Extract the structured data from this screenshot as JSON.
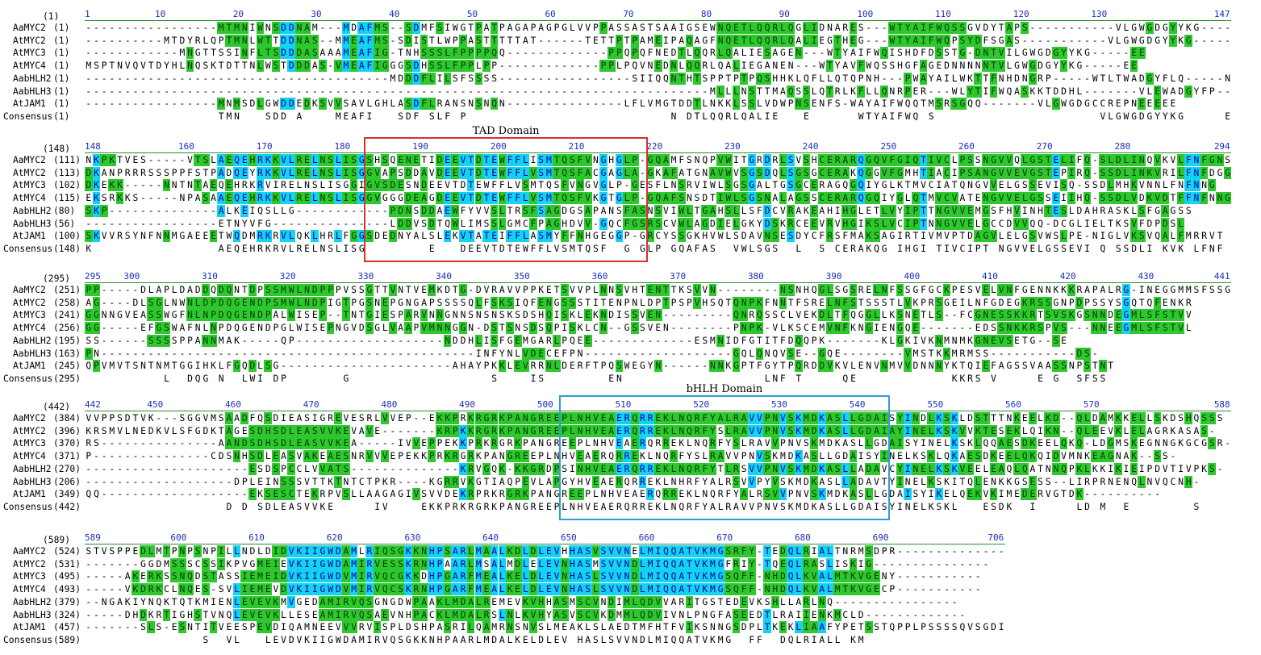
{
  "alignment": {
    "colors": {
      "identical": {
        "background": "#ffe600",
        "text": "#d40000"
      },
      "conserved": {
        "background": "#14d2f0",
        "text": "#0000a0"
      },
      "similar": {
        "background": "#2ec82e",
        "text": "#003a00"
      },
      "ruler_numbers": "#1a2fb8",
      "ruler_line": "#2e8b2e"
    },
    "blocks": [
      {
        "range_label": "(1)",
        "start_pos": 1,
        "end_pos": 147,
        "ruler_ticks": [
          "1",
          "10",
          "20",
          "30",
          "40",
          "50",
          "60",
          "70",
          "80",
          "90",
          "100",
          "110",
          "120",
          "130",
          "147"
        ],
        "rows": [
          {
            "name": "AaMYC2",
            "start": "(1)",
            "seq": "-----------------MTMNIWNSDDNAM---MDAFMS--SDMFSIWGTPATPAGAPAGPGLVVPPASSASTSAAIGSEWNQETLQQRLQGLIDNARES---WTYAIFWQSSGVDYTAPS-----------VLGWGDGYYKG-----EV"
          },
          {
            "name": "AtMYC2",
            "start": "(1)",
            "seq": "----------MTDYRLQPTMNLWTTDDNAS--MMEAFMS-SDISTLWPPASTTTTTAT------TETTPTPAMEIPAQAGFNQETLQQRLQALIEGTHEG---WTYAIFWQPSYDFSGAS-----------VLGWGDGYYKG-----EE"
          },
          {
            "name": "AtMYC3",
            "start": "(1)",
            "seq": "------------MNGTTSSINFLTSDDDASAAAMEAFIG-TNHSSSLFPPPPQQ-------------PPQPQFNEDTLQQRLQALIESAGEN---WTYAIFWQISHDFDSSTG-DNTVILGWGDGYYKG-----EE"
          },
          {
            "name": "AtMYC4",
            "start": "(1)",
            "seq": "MSPTNVQVTDYHLNQSKTDTTNLWSTDDDAS-VMEAFIGGGSDHSSLFPPLPP-------------PPLPQVNEDNLQQRLQALIEGANEN---WTYAVFWQSSHGFAGEDNNNNNTVLGWGDGYYKG-----EE"
          },
          {
            "name": "AabHLH2",
            "start": "(1)",
            "seq": "---------------------------------------MDDDFLILSFSSSS-----------------SIIQQNTHTSPPTPTPQSHHKLQFLLQTQPNH---PWAYAILWKTTFNHDNGRP-----WTLTWADGYFLQ-----NP"
          },
          {
            "name": "AabHLH3",
            "start": "(1)",
            "seq": "--------------------------------------------------------------------------------MLLLNSTTMAQSSLQTRLKFLLQNRPER---WLYTIFWQASKKTDDHL-------VLEWADGYFP-------"
          },
          {
            "name": "AtJAM1",
            "start": "(1)",
            "seq": "-----------------MNMSDLGWDDEDKSVVSAVLGHLASDFLRANSNSNQN---------------LFLVMGTDDTLNKKLSSLVDWPNSENFS-WAYAIFWQQTMSRSGQQ-------VLGWGDGCCREPNEEEEE"
          }
        ],
        "consensus": {
          "name": "Consensus",
          "start": "(1)",
          "seq": "                 TMN   SDD A    MEAFI   SDF SLF P                          N DTLQQRLQALIE   E      WTYAIFWQ S                     VLGWGDGYYKG     EE"
        }
      },
      {
        "range_label": "(148)",
        "start_pos": 148,
        "end_pos": 294,
        "ruler_ticks": [
          "148",
          "160",
          "170",
          "180",
          "190",
          "200",
          "210",
          "220",
          "230",
          "240",
          "250",
          "260",
          "270",
          "280",
          "294"
        ],
        "rows": [
          {
            "name": "AaMYC2",
            "start": "(111)",
            "seq": "NKPKTVES-----VTSLAEQEHRKKVLRELNSLISGSHSQENETIDEEVTDTEWFFLISMTQSFVNGHGLP-GQAMFSNQPVWITGRDRLSVSHCERARQGQVFGIQTIVCLPSSNGVVQLGSTELIFQ-SLDLINQVKVLFNFGNS"
          },
          {
            "name": "AtMYC2",
            "start": "(113)",
            "seq": "DKANPRRRSSSPPFSTPADQEYRKKVLRELNSLISGGVAPSDDAVDEEVTDTEWFFLVSMTQSFACGAGLA-GKAFATGNAVWVSGSDQLSGSGCERAKQGGVFGMHTIACIPSANGVVEVGSTEPIRQ-SSDLINKVRILFNFDGG"
          },
          {
            "name": "AtMYC3",
            "start": "(102)",
            "seq": "DKEKK-----NNTNTAEQEHRKRVIRELNSLISGGIGVSDESNDEEVTDTEWFFLVSMTQSFVNGVGLP-GESFLNSRVIWLSGSGALTGSGCERAGQGQIYGLKTMVCIATQNGVVELGSSEVISQ-SSDLMHKVNNLFNFNNG"
          },
          {
            "name": "AtMYC4",
            "start": "(115)",
            "seq": "EKSRKKS-----NPASAAEQEHRKKVLRELNSLISGGVGGGDEAGDEEVTDTEWFFLVSMTQSFVKGTGLP-GQAFSNSDTIWLSGSNALAGSSCERARQGQIYGLQTMVCVATENGVVELGSSEIIHQ-SSDLVDKVDTFFNFNNG"
          },
          {
            "name": "AabHLH2",
            "start": "(80)",
            "seq": "SKP--------------ALKEIQSLLG------------PDNSDDAEWFYVVSLTRSFSAGDGSAPANSFASNSVIWLTGAHSLLSFDCVRAKEAHIHGLETLVYIPTTNGVVEMGSFHVINHTESLDAHRASKLSFGAGSS"
          },
          {
            "name": "AabHLH3",
            "start": "(56)",
            "seq": "-----------------ETNYVFG---------------LDDVSDTQWLIMSSLGMCFPAGHDVV-GQCFGSRSCVWLAGDIELGKYDSKRCEEVRVHGIKSLVCIPTNNGVVELGCCDVVQQ-DCGLIELTKSVFDPDSL"
          },
          {
            "name": "AtJAM1",
            "start": "(100)",
            "seq": "SKVVRSYNFNNMGAEEETWQDMRKRVLQKLHRLFGGSDEDNYALSLEKVTATEIFFLASMYFFNHGEGGP-GRCYSSGKHVWLSDAVNSESDYCFRSFMAKSAGIRTIVMVPTDAGVLELGSVWSLPE-NIGLVKSVQALFMRRVT"
          }
        ],
        "consensus": {
          "name": "Consensus",
          "start": "(148)",
          "seq": "K                AEQEHRKRVLRELNSLISG        E   DEEVTDTEWFFLVSMTQSF  G GLP GQAFAS  VWLSGS  L  S CERAKQG IHGI TIVCIPT NGVVELGSSEVI Q SSDLI KVK LFNF"
        }
      },
      {
        "range_label": "(295)",
        "start_pos": 295,
        "end_pos": 441,
        "ruler_ticks": [
          "295",
          "300",
          "310",
          "320",
          "330",
          "340",
          "350",
          "360",
          "370",
          "380",
          "390",
          "400",
          "410",
          "420",
          "430",
          "441"
        ],
        "rows": [
          {
            "name": "AaMYC2",
            "start": "(251)",
            "seq": "PP-----DLAPLDADDQDQNTDPSSMWLNDPPPVSSGTTVNTVEMKDTG-DVRAVVPPKETSVVPLNNSVHTENTTKSVVN--------NSNHQGLSGSRELNFSSGFGCKPESVELVNFGENNKKKRAPALRG-INEGGMMSFSSGM"
          },
          {
            "name": "AtMYC2",
            "start": "(258)",
            "seq": "AG----DLSGLNWNLDPDQGENDPSMWLNDPIGTPGSNEPGNGAPSSSSQLFSKSIQFENGSSSTITENPNLDPTPSPVHSQTQNPKFNNTFSRELNFSTSSSTLVKPRSGEILNFGDEGKRSSGNPDPSSYSGQTQFENKR"
          },
          {
            "name": "AtMYC3",
            "start": "(241)",
            "seq": "GGNNGVEASSWGFNLNPDQGENDPALWISEP--TNTGIESPARVNNGNNSNSNSKSDSHQISKLEKNDISSVEN---------QNRQSSCLVEKDLTFQGGLLKSNETLS--FCGNESSKKRTSVSKGSNNDEGMLSFSTVV"
          },
          {
            "name": "AtMYC4",
            "start": "(256)",
            "seq": "GG-----EFGSWAFNLNPDQGENDPGLWISEPNGVDSGLVAAPVMNNGGN-DSTSNSDSQPISKLCN--GSSVEN--------PNPK-VLKSCEMVNFKNGIENGQE-------EDSSNKKRSPVS---NNEEGMLSFSTVL"
          },
          {
            "name": "AabHLH2",
            "start": "(195)",
            "seq": "SS------SSSSPPANNMAK-----QP-------------------NDDHLISFGEMGARLPQEE-------------ESMNIDFGTITFDQQPK-------KLGKIVKNMNMKGNEVSETG--SE"
          },
          {
            "name": "AabHLH3",
            "start": "(163)",
            "seq": "PN------------------------------------------------INFYNLVDECEFPN-------------------GQLQNQVSE--GQE--------VMSTKKMRMSS-----------DS-"
          },
          {
            "name": "AtJAM1",
            "start": "(245)",
            "seq": "QPVMVTSNTNMTGGIHKLFGQDLSG----------------------AHAYPKKLEVRRNLDERFTPQSWEGYN------NNKGPTFGYTPQRDDVKVLENVNMVVDNNNYKTQIEFAGSSVAASSNPSTNT"
          }
        ],
        "consensus": {
          "name": "Consensus",
          "start": "(295)",
          "seq": "          L  DQG N  LWI DP       G                  S    IS        EN                  LNF T     QE            KKRS V     E G  SFSS"
        }
      },
      {
        "range_label": "(442)",
        "start_pos": 442,
        "end_pos": 588,
        "ruler_ticks": [
          "442",
          "450",
          "460",
          "470",
          "480",
          "490",
          "500",
          "510",
          "520",
          "530",
          "540",
          "550",
          "560",
          "570",
          "588"
        ],
        "rows": [
          {
            "name": "AaMYC2",
            "start": "(384)",
            "seq": "VVPPSDTVK---SGGVMSAADFQSDIEASIGREVESRLVVEP--EKKPRKRGRKPANGREEPLNHVEAERQRREKLNQRFYALRAVVPNVSKMDKASLLGDAISYINDLKSKLDSTTTNKEELKD--QLDAMKKELLSKDSHQSSS"
          },
          {
            "name": "AtMYC2",
            "start": "(396)",
            "seq": "KRSMVLNEDKVLSFGDKTAGESDHSDLEASVVKEVAVE-------KRPKKRGRKPANGREEPLNHVEAERQRREKLNQRFYSLRAVVPNVSKMDKASLLGDAIAYINELKSKVVKTESEKLQIKN--QLEEVKLELAGRKASAS-"
          },
          {
            "name": "AtMYC3",
            "start": "(370)",
            "seq": "RS---------------AANDSDHSDLEASVVKEA-----IVVEPPEKKPRKRGRKPANGREEPLNHVEAERQRREKLNQRFYSLRAVVPNVSKMDKASLLGDAISYINELKSKLQQAESDKEELQKQ-LDGMSKEGNNGKGCGSR-"
          },
          {
            "name": "AtMYC4",
            "start": "(371)",
            "seq": "P---------------CDSNHSDLEASVAKEAESNRVVVEPEKKPRKRGRKPANGREEPLNHVEAERQRREKLNQRFYSLRAVVPNVSKMDKASLLGDAISYINELKSKLQKAESDKEELQKQIDVMNKEAGNAK--SS-"
          },
          {
            "name": "AabHLH2",
            "start": "(270)",
            "seq": "---------------------ESDSPCCLVVATS--------------KRVGQK-KKGRDPSINHVEAERQRREKLNQRFYTLRSVVPNVSKMDKASLLADAVCYINELKSKVEELEAQLQATNNQPKLKKIKIEIPDVTIVPKS-"
          },
          {
            "name": "AabHLH3",
            "start": "(206)",
            "seq": "-------------------DPLEINSSSVTTKTNTCTPKR----KGRRVKGTIAQPEVLAPGYHVEAERQRREKLNHRFYALRSVVPYVSKMDKASLLADAVTYINELKSKITQLENKKGSESS--LIRPRNENQLNVQCNH-"
          },
          {
            "name": "AtJAM1",
            "start": "(349)",
            "seq": "QQ-------------------EKSESCTEKRPVSLLAAGAGIVSVVDEKRPRKRGRKPANGREEPLNHVEAERQRREKLNQRFYALRSVVPNVSKMDKASLLGDAISYIKELQEKVKIMEDERVGTDK----------"
          }
        ],
        "consensus": {
          "name": "Consensus",
          "start": "(442)",
          "seq": "                  D D SDLEASVVKE     IV    EKKPRKRGRKPANGREEPLNHVEAERQRREKLNQRFYALRAVVPNVSKMDKASLLGDAISYINELKSKL   ESDK  I     LD M  E        S"
        }
      },
      {
        "range_label": "(589)",
        "start_pos": 589,
        "end_pos": 706,
        "ruler_ticks": [
          "589",
          "600",
          "610",
          "620",
          "630",
          "640",
          "650",
          "660",
          "670",
          "680",
          "690",
          "706"
        ],
        "rows": [
          {
            "name": "AaMYC2",
            "start": "(524)",
            "seq": "STVSPPEDLMTPNPSNPILLNDLDIDVKIIGWDAMLRIQSGKKNHPSARLMAALKDLDLEVHHASVSVVNELMIQQATVKMGSRFY-TEDQLRIALTNRMSDPR---------------"
          },
          {
            "name": "AtMYC2",
            "start": "(531)",
            "seq": "-------GGDMSSSCSSIKPVGMEIEVKIIGWDAMIRVESSKRNHPAARLMSALMDLELEVNHASMSVVNDLMIQQATVKMGFRIY-TQEQLRASLISKIG---------------"
          },
          {
            "name": "AtMYC3",
            "start": "(495)",
            "seq": "-----AKERKSSNQDSTASSIEMEIDVKIIGWDVMIRVQCGKKDHPGARFMEALKELDLEVNHASLSVVNDLMIQQATVKMGSQFF-NHDQLKVALMTKVGENY-----------"
          },
          {
            "name": "AtMYC4",
            "start": "(493)",
            "seq": "-----VKDRKCLNQES-SVLIEMEVDVKIIGWDVMIRVQCSKRNHPGARFMEALKELDLEVNHASLSVVNDLMIQQATVKMGSQFF-NHDQLKVALMTKVGECP-----------"
          },
          {
            "name": "AabHLH2",
            "start": "(379)",
            "seq": "--NGAKIYNQKTQTKMIENLEVEVKMVGEDAMIRVQSGNGDWPAAKLMDALREMEVKVHHASMSCVNDIMLQDVVARITGSTEDEVKSHLLARLNQ----------------"
          },
          {
            "name": "AabHLH3",
            "start": "(324)",
            "seq": "-----DHDKRTIGHSTVNQLEVEVKLLESEAMIRVQSAEVNHPACKLMDALRSLNLKVHYASVSCVKDMMLQDVIVNLPNGFASEEDTLRAIIENKMCLD-------------"
          },
          {
            "name": "AtJAM1",
            "start": "(457)",
            "seq": "-------SLS-ESNTITVEESPEVDIQAMNEEVVVRVISPLDSHPASRILQAMRNSNVSLMEAKLSLAEDTMFHTFVIKSNNGSDPLTKEKLIAAFYPETSSTQPPLPSSSSQVSGDI"
          }
        ],
        "consensus": {
          "name": "Consensus",
          "start": "(589)",
          "seq": "               S  VL   LEVDVKIIGWDAMIRVQSGKKNHPAARLMDALKELDLEV HASLSVVNDLMIQQATVKMG  FF  DQLRIALL KM"
        }
      }
    ],
    "domains": [
      {
        "label": "TAD Domain",
        "color": "#d63030",
        "block": 1,
        "col_start": 36,
        "col_end": 71
      },
      {
        "label": "bHLH Domain",
        "color": "#2c9ed6",
        "block": 3,
        "col_start": 61,
        "col_end": 102
      }
    ]
  }
}
